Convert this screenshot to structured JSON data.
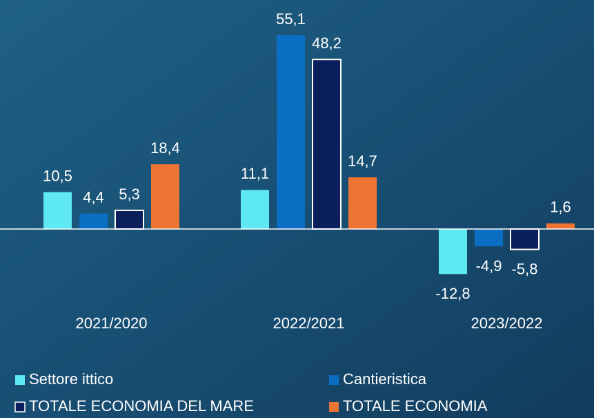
{
  "chart_data": {
    "type": "bar",
    "categories": [
      "2021/2020",
      "2022/2021",
      "2023/2022"
    ],
    "series": [
      {
        "name": "Settore ittico",
        "color": "#5ee8f2",
        "values": [
          10.5,
          11.1,
          -12.8
        ],
        "value_labels": [
          "10,5",
          "11,1",
          "-12,8"
        ]
      },
      {
        "name": "Cantieristica",
        "color": "#0a6fc2",
        "values": [
          4.4,
          55.1,
          -4.9
        ],
        "value_labels": [
          "4,4",
          "55,1",
          "-4,9"
        ]
      },
      {
        "name": "TOTALE ECONOMIA DEL MARE",
        "color": "#0b1f5c",
        "values": [
          5.3,
          48.2,
          -5.8
        ],
        "value_labels": [
          "5,3",
          "48,2",
          "-5,8"
        ]
      },
      {
        "name": "TOTALE ECONOMIA",
        "color": "#ee7433",
        "values": [
          18.4,
          14.7,
          1.6
        ],
        "value_labels": [
          "18,4",
          "14,7",
          "1,6"
        ]
      }
    ],
    "legend": "bottom"
  }
}
